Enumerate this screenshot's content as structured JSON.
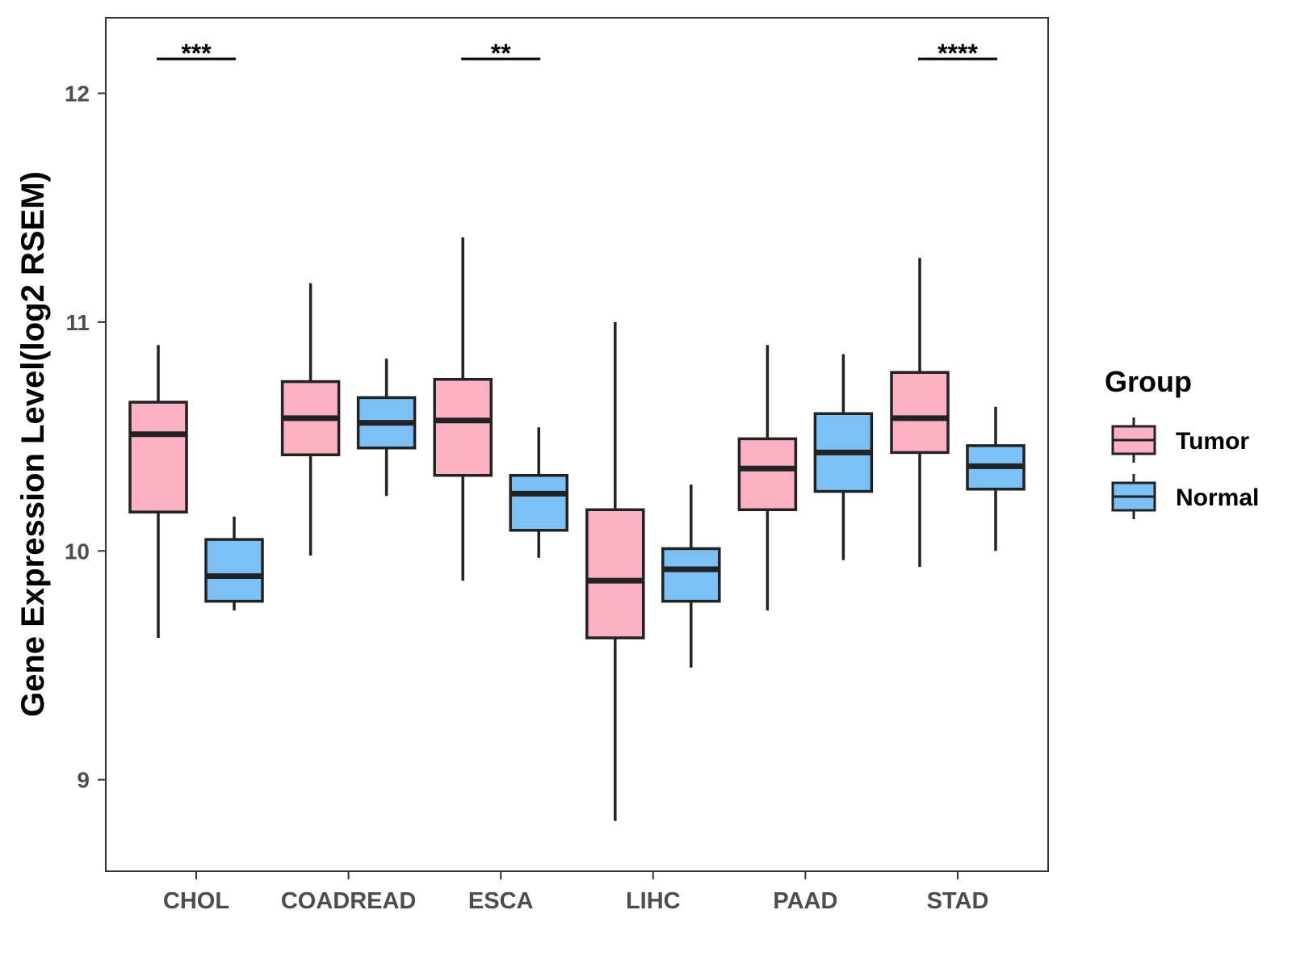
{
  "chart_data": {
    "type": "boxplot",
    "title": "",
    "xlabel": "",
    "ylabel": "Gene Expression Level(log2 RSEM)",
    "ylim": [
      8.6,
      12.33
    ],
    "yticks": [
      9,
      10,
      11,
      12
    ],
    "categories": [
      "CHOL",
      "COADREAD",
      "ESCA",
      "LIHC",
      "PAAD",
      "STAD"
    ],
    "legend": {
      "title": "Group",
      "position": "right",
      "entries": [
        {
          "name": "Tumor",
          "color": "#FBB1C3"
        },
        {
          "name": "Normal",
          "color": "#7BC1F6"
        }
      ]
    },
    "series": [
      {
        "name": "Tumor",
        "color": "#FBB1C3",
        "boxes": [
          {
            "category": "CHOL",
            "whisker_low": 9.62,
            "q1": 10.17,
            "median": 10.51,
            "q3": 10.65,
            "whisker_high": 10.9
          },
          {
            "category": "COADREAD",
            "whisker_low": 9.98,
            "q1": 10.42,
            "median": 10.58,
            "q3": 10.74,
            "whisker_high": 11.17
          },
          {
            "category": "ESCA",
            "whisker_low": 9.87,
            "q1": 10.33,
            "median": 10.57,
            "q3": 10.75,
            "whisker_high": 11.37
          },
          {
            "category": "LIHC",
            "whisker_low": 8.82,
            "q1": 9.62,
            "median": 9.87,
            "q3": 10.18,
            "whisker_high": 11.0
          },
          {
            "category": "PAAD",
            "whisker_low": 9.74,
            "q1": 10.18,
            "median": 10.36,
            "q3": 10.49,
            "whisker_high": 10.9
          },
          {
            "category": "STAD",
            "whisker_low": 9.93,
            "q1": 10.43,
            "median": 10.58,
            "q3": 10.78,
            "whisker_high": 11.28
          }
        ]
      },
      {
        "name": "Normal",
        "color": "#7BC1F6",
        "boxes": [
          {
            "category": "CHOL",
            "whisker_low": 9.74,
            "q1": 9.78,
            "median": 9.89,
            "q3": 10.05,
            "whisker_high": 10.15
          },
          {
            "category": "COADREAD",
            "whisker_low": 10.24,
            "q1": 10.45,
            "median": 10.56,
            "q3": 10.67,
            "whisker_high": 10.84
          },
          {
            "category": "ESCA",
            "whisker_low": 9.97,
            "q1": 10.09,
            "median": 10.25,
            "q3": 10.33,
            "whisker_high": 10.54
          },
          {
            "category": "LIHC",
            "whisker_low": 9.49,
            "q1": 9.78,
            "median": 9.92,
            "q3": 10.01,
            "whisker_high": 10.29
          },
          {
            "category": "PAAD",
            "whisker_low": 9.96,
            "q1": 10.26,
            "median": 10.43,
            "q3": 10.6,
            "whisker_high": 10.86
          },
          {
            "category": "STAD",
            "whisker_low": 10.0,
            "q1": 10.27,
            "median": 10.37,
            "q3": 10.46,
            "whisker_high": 10.63
          }
        ]
      }
    ],
    "annotations": [
      {
        "category": "CHOL",
        "label": "***",
        "y": 12.15
      },
      {
        "category": "COADREAD",
        "label": "",
        "y": 12.15
      },
      {
        "category": "ESCA",
        "label": "**",
        "y": 12.15
      },
      {
        "category": "LIHC",
        "label": "",
        "y": 12.15
      },
      {
        "category": "PAAD",
        "label": "",
        "y": 12.15
      },
      {
        "category": "STAD",
        "label": "****",
        "y": 12.15
      }
    ],
    "grid": false
  }
}
